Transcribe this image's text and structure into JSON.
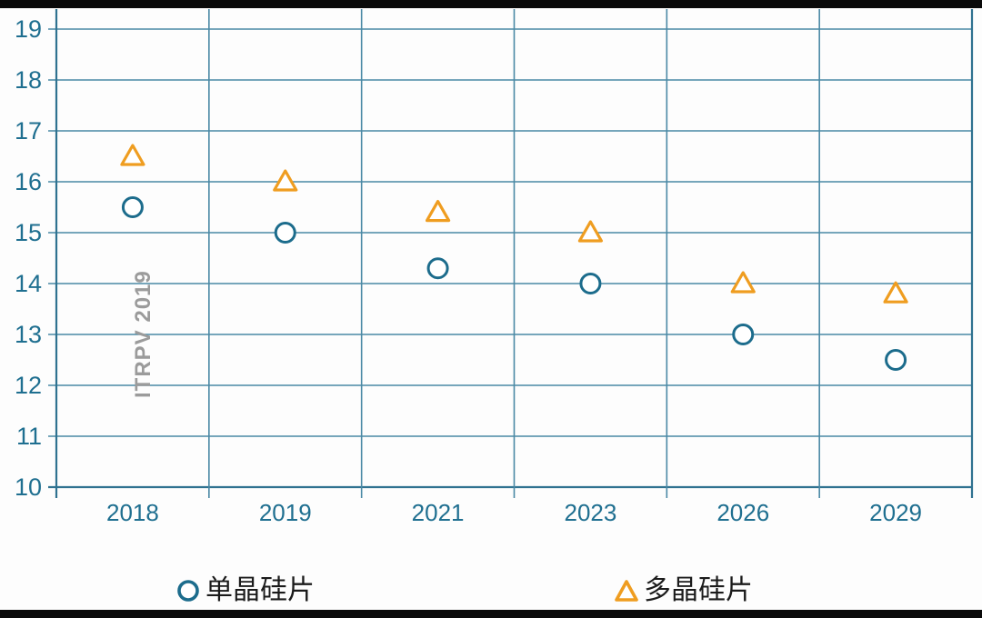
{
  "chart_data": {
    "type": "scatter",
    "title": "",
    "categories": [
      "2018",
      "2019",
      "2021",
      "2023",
      "2026",
      "2029"
    ],
    "series": [
      {
        "name": "单晶硅片",
        "marker": "circle",
        "color": "#1c6c8c",
        "values": [
          15.5,
          15.0,
          14.3,
          14.0,
          13.0,
          12.5
        ]
      },
      {
        "name": "多晶硅片",
        "marker": "triangle",
        "color": "#ef9d20",
        "values": [
          16.5,
          16.0,
          15.4,
          15.0,
          14.0,
          13.8
        ]
      }
    ],
    "xlabel": "",
    "ylabel": "",
    "ylim": [
      10,
      19
    ],
    "y_ticks": [
      19,
      18,
      17,
      16,
      15,
      14,
      13,
      12,
      11,
      10
    ],
    "grid": "both",
    "legend_position": "bottom",
    "annotation": {
      "text": "ITRPV 2019",
      "color": "#9b9b9b"
    },
    "colors": {
      "gridline": "#4a89a5",
      "axis": "#2f7290",
      "tick_label": "#1f6f90",
      "frame_bar": "#0a0a0a"
    }
  }
}
